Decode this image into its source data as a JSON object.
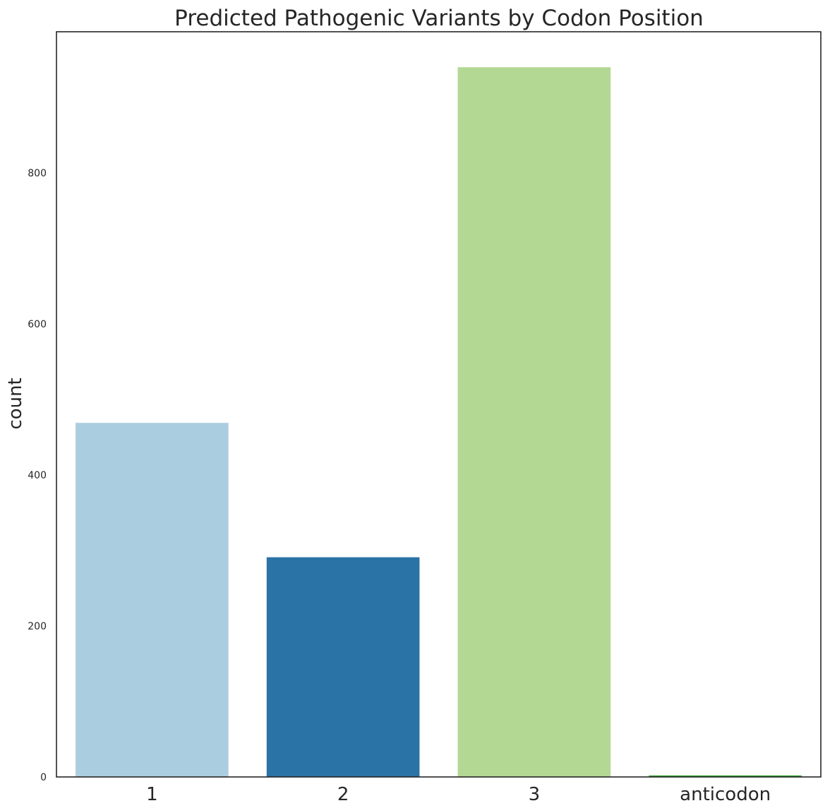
{
  "chart_data": {
    "type": "bar",
    "title": "Predicted Pathogenic Variants by Codon Position",
    "xlabel": "",
    "ylabel": "count",
    "categories": [
      "1",
      "2",
      "3",
      "anticodon"
    ],
    "values": [
      469,
      291,
      940,
      2
    ],
    "colors": [
      "#abcde0",
      "#2a73a6",
      "#b3d893",
      "#33a02c"
    ],
    "ylim": [
      0,
      987
    ],
    "yticks": [
      0,
      200,
      400,
      600,
      800
    ],
    "grid": false,
    "legend": "none"
  }
}
